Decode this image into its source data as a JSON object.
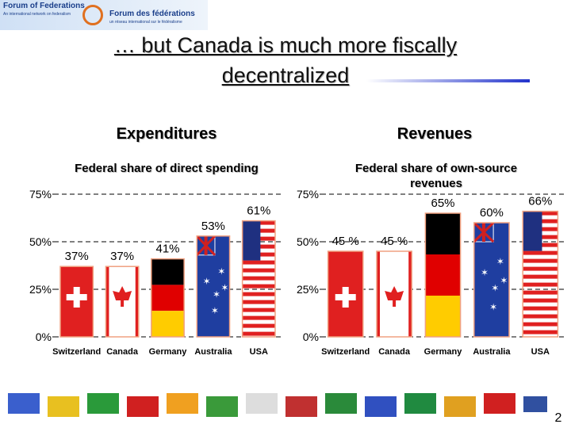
{
  "header": {
    "logo_en": "Forum of Federations",
    "logo_en_sub": "An international network on federalism",
    "logo_fr": "Forum des fédérations",
    "logo_fr_sub": "un réseau international sur le fédéralisme"
  },
  "title": "… but Canada is much more fiscally decentralized",
  "page_number": "2",
  "chart_data": [
    {
      "type": "bar",
      "title": "Expenditures",
      "subtitle": "Federal share of direct spending",
      "categories": [
        "Switzerland",
        "Canada",
        "Germany",
        "Australia",
        "USA"
      ],
      "values": [
        37,
        37,
        41,
        53,
        61
      ],
      "value_labels": [
        "37%",
        "37%",
        "41%",
        "53%",
        "61%"
      ],
      "ylim": [
        0,
        75
      ],
      "yticks": [
        {
          "value": 0,
          "label": "0%"
        },
        {
          "value": 25,
          "label": "25%"
        },
        {
          "value": 50,
          "label": "50%"
        },
        {
          "value": 75,
          "label": "75%"
        }
      ],
      "grid": true
    },
    {
      "type": "bar",
      "title": "Revenues",
      "subtitle": "Federal share of own-source revenues",
      "categories": [
        "Switzerland",
        "Canada",
        "Germany",
        "Australia",
        "USA"
      ],
      "values": [
        45,
        45,
        65,
        60,
        66
      ],
      "value_labels": [
        "45 %",
        "45 %",
        "65%",
        "60%",
        "66%"
      ],
      "ylim": [
        0,
        75
      ],
      "yticks": [
        {
          "value": 0,
          "label": "0%"
        },
        {
          "value": 25,
          "label": "25%"
        },
        {
          "value": 50,
          "label": "50%"
        },
        {
          "value": 75,
          "label": "75%"
        }
      ],
      "grid": true
    }
  ]
}
